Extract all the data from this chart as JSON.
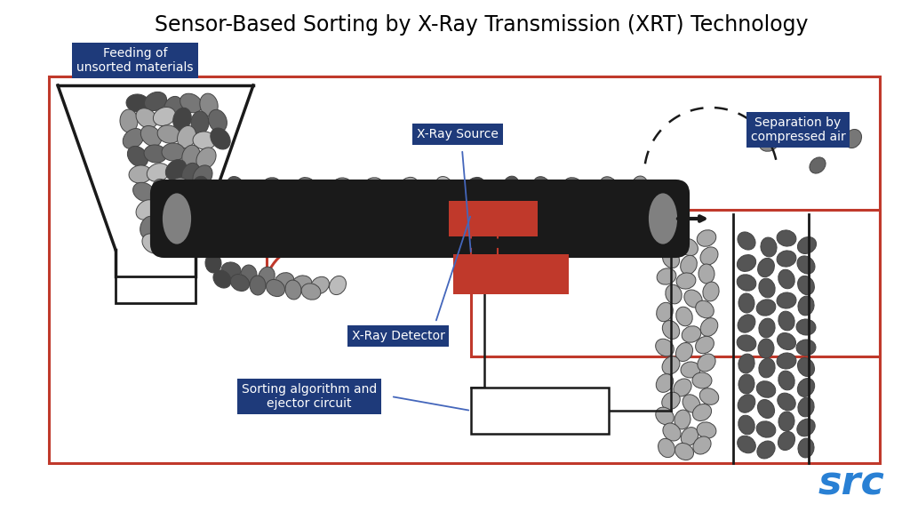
{
  "title": "Sensor-Based Sorting by X-Ray Transmission (XRT) Technology",
  "title_fontsize": 17,
  "background_color": "#ffffff",
  "label_bg_color": "#1e3a7a",
  "label_text_color": "#ffffff",
  "red_color": "#c0392b",
  "dark_gray": "#1a1a1a",
  "mid_gray": "#555555",
  "light_gray": "#aaaaaa",
  "src_color": "#2980d4",
  "labels": {
    "feeding": "Feeding of\nunsorted materials",
    "xray_source": "X-Ray Source",
    "separation": "Separation by\ncompressed air",
    "xray_detector": "X-Ray Detector",
    "sorting_algo": "Sorting algorithm and\nejector circuit"
  },
  "pebble_colors": [
    "#444444",
    "#555555",
    "#666666",
    "#777777",
    "#888888",
    "#999999",
    "#aaaaaa",
    "#bbbbbb",
    "#cccccc"
  ]
}
